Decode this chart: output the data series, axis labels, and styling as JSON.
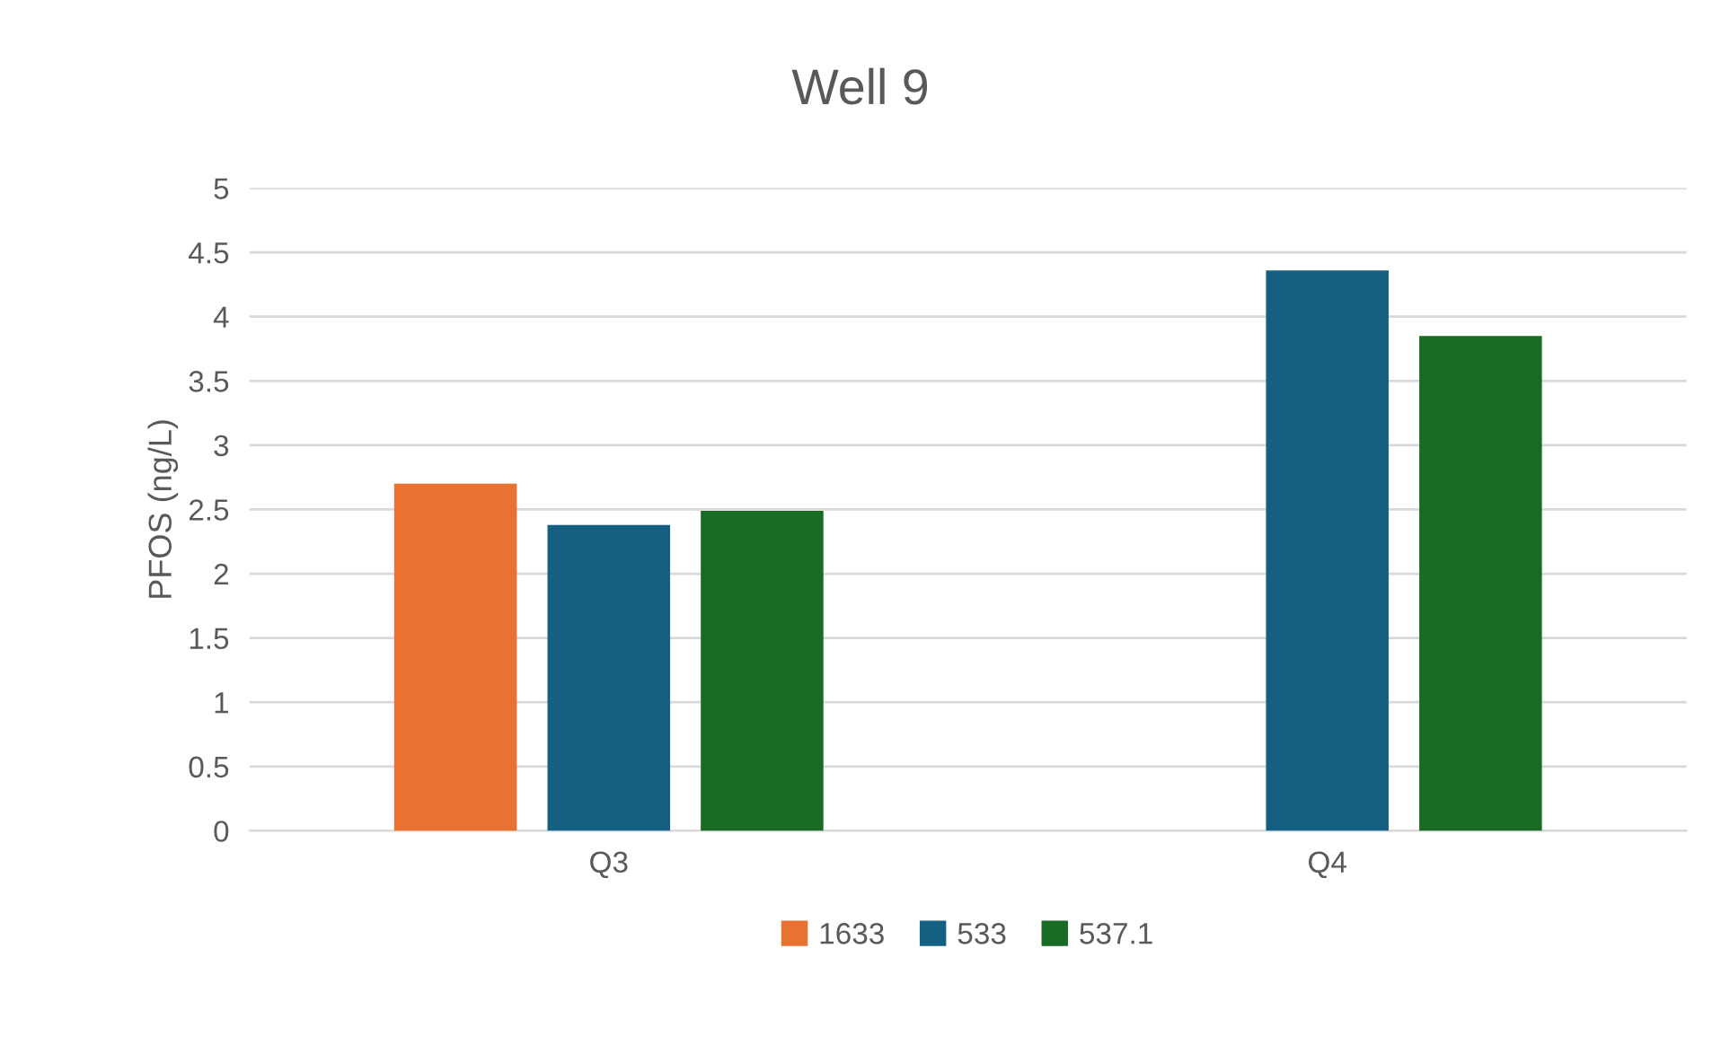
{
  "chart_data": {
    "type": "bar",
    "title": "Well 9",
    "ylabel": "PFOS (ng/L)",
    "categories": [
      "Q3",
      "Q4"
    ],
    "series": [
      {
        "name": "1633",
        "color": "#e97132",
        "values": [
          2.7,
          null
        ]
      },
      {
        "name": "533",
        "color": "#156082",
        "values": [
          2.38,
          4.36
        ]
      },
      {
        "name": "537.1",
        "color": "#196b24",
        "values": [
          2.49,
          3.85
        ]
      }
    ],
    "ylim": [
      0,
      5
    ],
    "yticks": [
      0,
      0.5,
      1,
      1.5,
      2,
      2.5,
      3,
      3.5,
      4,
      4.5,
      5
    ],
    "grid": "y",
    "legend": "bottom"
  }
}
